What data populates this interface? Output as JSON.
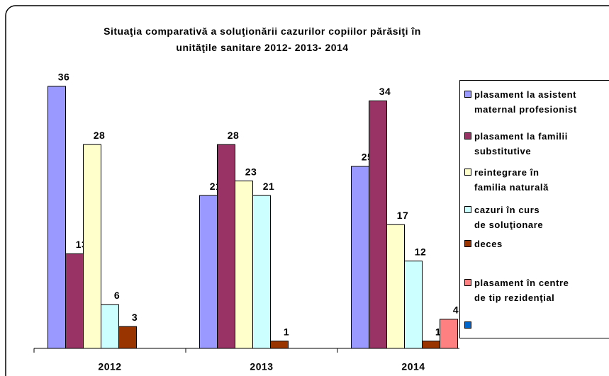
{
  "chart_data": {
    "type": "bar",
    "title": "Situaţia comparativă a soluţionării cazurilor copiilor părăsiţi în\nunităţile sanitare 2012- 2013- 2014",
    "categories": [
      "2012",
      "2013",
      "2014"
    ],
    "ylim": [
      0,
      40
    ],
    "series": [
      {
        "name": "plasament la asistent\nmaternal profesionist",
        "color": "#9999ff",
        "values": [
          36,
          21,
          25
        ]
      },
      {
        "name": "plasament la familii\nsubstitutive",
        "color": "#993366",
        "values": [
          13,
          28,
          34
        ]
      },
      {
        "name": "reintegrare în\nfamilia naturală",
        "color": "#ffffcc",
        "values": [
          28,
          23,
          17
        ]
      },
      {
        "name": "cazuri în curs\nde soluţionare",
        "color": "#ccffff",
        "values": [
          6,
          21,
          12
        ]
      },
      {
        "name": "deces",
        "color": "#993300",
        "values": [
          3,
          1,
          1
        ]
      },
      {
        "name": "plasament în centre\nde tip rezidenţial",
        "color": "#ff8080",
        "values": [
          null,
          null,
          4
        ]
      },
      {
        "name": null,
        "color": "#0066cc",
        "values": [
          null,
          null,
          null
        ]
      }
    ]
  }
}
